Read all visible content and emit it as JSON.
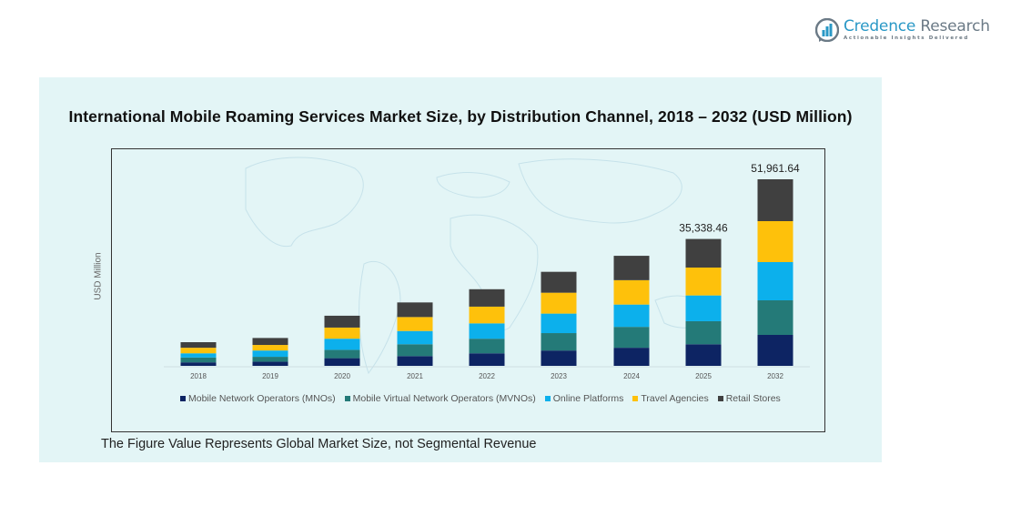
{
  "brand": {
    "name_part1": "Credence",
    "name_part2": "Research",
    "tagline": "Actionable Insights Delivered",
    "color": "#2a98c6"
  },
  "footnote": "The Figure Value Represents Global Market Size, not Segmental Revenue",
  "chart_data": {
    "type": "bar",
    "stacked": true,
    "title": "International Mobile Roaming Services Market Size, by Distribution Channel, 2018 – 2032 (USD Million)",
    "xlabel": "",
    "ylabel": "USD Million",
    "categories": [
      "2018",
      "2019",
      "2020",
      "2021",
      "2022",
      "2023",
      "2024",
      "2025",
      "2032"
    ],
    "ylim": [
      0,
      55000
    ],
    "grid": false,
    "legend_position": "bottom",
    "series": [
      {
        "name": "Mobile Network Operators (MNOs)",
        "color": "#0d2463",
        "values": [
          970,
          1160,
          2130,
          2720,
          3490,
          4270,
          5040,
          6019,
          8618
        ]
      },
      {
        "name": "Mobile Virtual Network Operators (MVNOs)",
        "color": "#247a78",
        "values": [
          1360,
          1360,
          2330,
          3300,
          4070,
          4850,
          5820,
          6407,
          9632
        ]
      },
      {
        "name": "Online Platforms",
        "color": "#0cb0ec",
        "values": [
          1160,
          1750,
          3100,
          3690,
          4270,
          5430,
          6210,
          7184,
          10646
        ]
      },
      {
        "name": "Travel Agencies",
        "color": "#fec10b",
        "values": [
          1550,
          1550,
          3100,
          3880,
          4660,
          5820,
          6790,
          7767,
          11406
        ]
      },
      {
        "name": "Retail Stores",
        "color": "#404040",
        "values": [
          1550,
          1940,
          3300,
          4070,
          4850,
          5820,
          6790,
          7961,
          11660
        ]
      }
    ],
    "data_labels": [
      {
        "category": "2025",
        "text": "35,338.46"
      },
      {
        "category": "2032",
        "text": "51,961.64"
      }
    ]
  }
}
